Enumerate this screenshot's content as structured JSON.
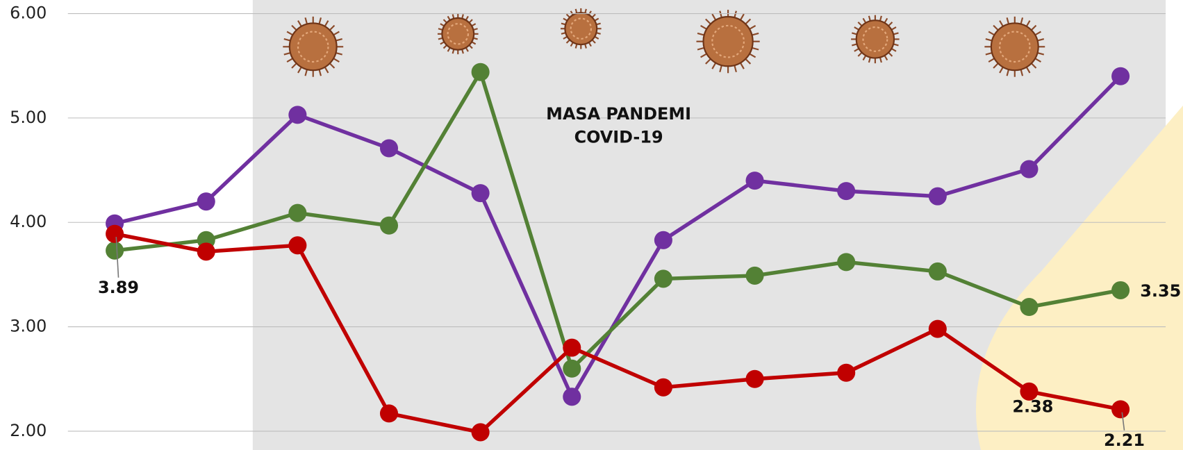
{
  "chart_data": {
    "type": "line",
    "annotations": [
      "MASA PANDEMI",
      "COVID-19"
    ],
    "categories": [
      null,
      null,
      null,
      null,
      null,
      null,
      null,
      null,
      null,
      null,
      null,
      null
    ],
    "series": [
      {
        "color": "#7030a0",
        "values": [
          3.99,
          4.2,
          5.03,
          4.71,
          4.28,
          2.33,
          3.83,
          4.4,
          4.3,
          4.25,
          4.51,
          5.4
        ]
      },
      {
        "color": "#538135",
        "values": [
          3.73,
          3.83,
          4.09,
          3.97,
          5.44,
          2.6,
          3.46,
          3.49,
          3.62,
          3.53,
          3.19,
          3.35
        ],
        "value_labels": [
          null,
          null,
          null,
          null,
          null,
          null,
          null,
          null,
          null,
          null,
          null,
          "3.35"
        ]
      },
      {
        "color": "#c00000",
        "values": [
          3.89,
          3.72,
          3.78,
          2.17,
          1.99,
          2.8,
          2.42,
          2.5,
          2.56,
          2.98,
          2.38,
          2.21
        ],
        "value_labels": [
          "3.89",
          null,
          null,
          null,
          null,
          null,
          null,
          null,
          null,
          null,
          "2.38",
          "2.21"
        ]
      }
    ],
    "ylim": [
      1.82,
      6.13
    ],
    "yticks": [
      {
        "value": 2,
        "label": "2.00"
      },
      {
        "value": 3,
        "label": "3.00"
      },
      {
        "value": 4,
        "label": "4.00"
      },
      {
        "value": 5,
        "label": "5.00"
      },
      {
        "value": 6,
        "label": "6.00"
      }
    ],
    "grid": true
  }
}
